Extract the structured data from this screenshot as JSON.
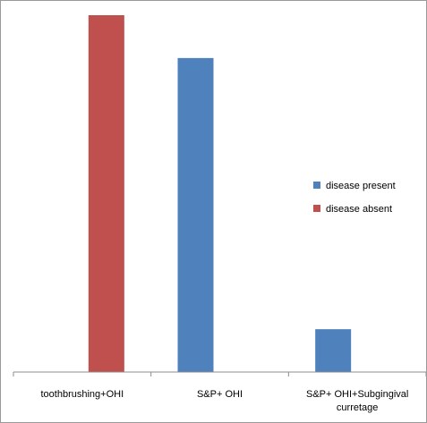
{
  "chart_data": {
    "type": "bar",
    "categories": [
      [
        "toothbrushing+OHI"
      ],
      [
        "S&P+ OHI"
      ],
      [
        "S&P+ OHI+Subgingival",
        "curretage"
      ]
    ],
    "series": [
      {
        "name": "disease present",
        "color": "#4f81bd",
        "values": [
          0,
          88,
          12
        ]
      },
      {
        "name": "disease absent",
        "color": "#c0504d",
        "values": [
          100,
          0,
          0
        ]
      }
    ],
    "ylim": [
      0,
      100
    ],
    "grid": false,
    "legend_position": "right",
    "title": "",
    "xlabel": "",
    "ylabel": ""
  }
}
